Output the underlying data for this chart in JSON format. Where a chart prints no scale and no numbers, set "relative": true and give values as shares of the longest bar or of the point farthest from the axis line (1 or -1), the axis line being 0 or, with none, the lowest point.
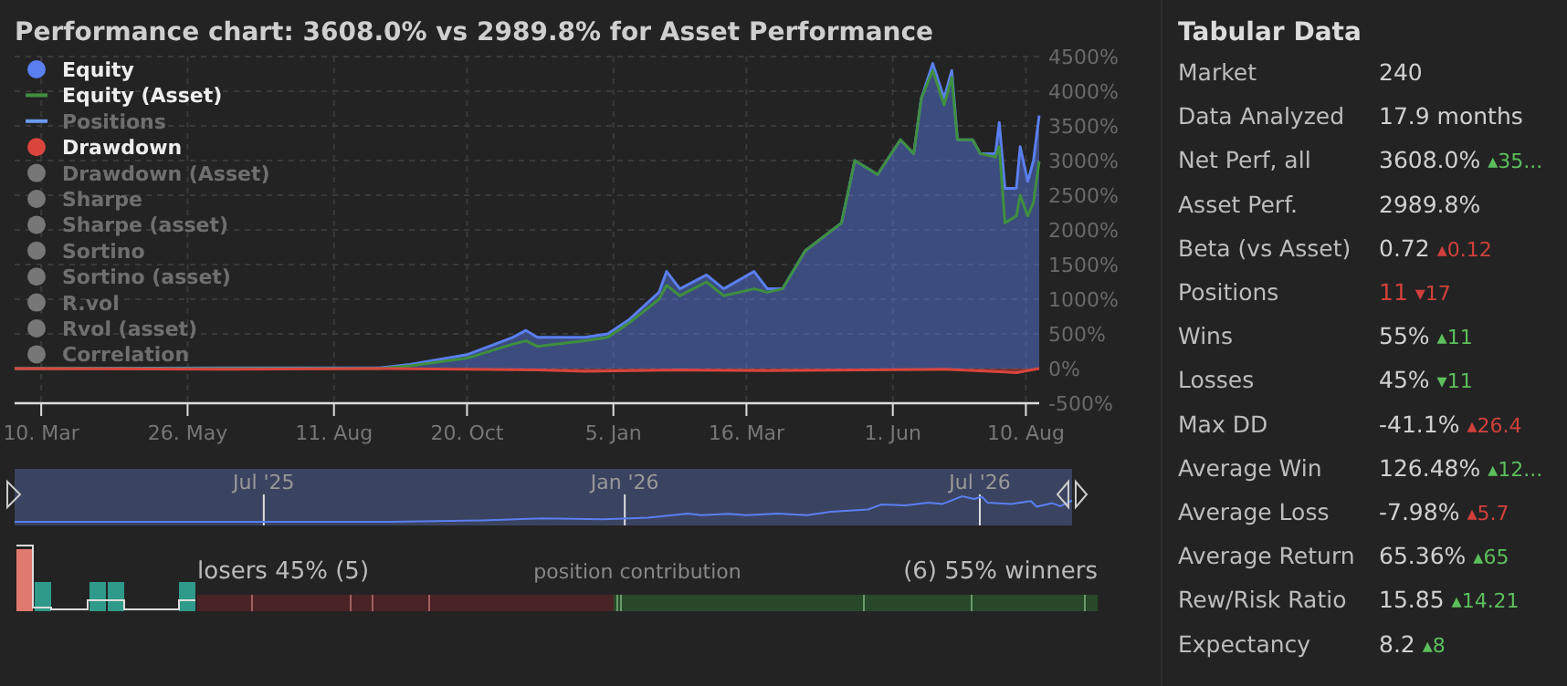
{
  "chart_data": [
    {
      "type": "area",
      "title": "Performance chart: 3608.0% vs 2989.8% for Asset Performance",
      "xlim": [
        "2025-02-24",
        "2026-08-17"
      ],
      "ylim": [
        -500,
        4500
      ],
      "xticks": [
        {
          "value": "2025-03-10",
          "label": "10. Mar"
        },
        {
          "value": "2025-05-26",
          "label": "26. May"
        },
        {
          "value": "2025-08-11",
          "label": "11. Aug"
        },
        {
          "value": "2025-10-20",
          "label": "20. Oct"
        },
        {
          "value": "2026-01-05",
          "label": "5. Jan"
        },
        {
          "value": "2026-03-16",
          "label": "16. Mar"
        },
        {
          "value": "2026-06-01",
          "label": "1. Jun"
        },
        {
          "value": "2026-08-10",
          "label": "10. Aug"
        }
      ],
      "yticks": [
        {
          "value": -500,
          "label": "-500%"
        },
        {
          "value": 0,
          "label": "0%"
        },
        {
          "value": 500,
          "label": "500%"
        },
        {
          "value": 1000,
          "label": "1000%"
        },
        {
          "value": 1500,
          "label": "1500%"
        },
        {
          "value": 2000,
          "label": "2000%"
        },
        {
          "value": 2500,
          "label": "2500%"
        },
        {
          "value": 3000,
          "label": "3000%"
        },
        {
          "value": 3500,
          "label": "3500%"
        },
        {
          "value": 4000,
          "label": "4000%"
        },
        {
          "value": 4500,
          "label": "4500%"
        }
      ],
      "grid": true,
      "legend": "top left",
      "series": [
        {
          "name": "Equity",
          "type": "area",
          "color": "#5a7ff0",
          "x": [
            "2025-02-24",
            "2025-06-12",
            "2025-09-04",
            "2025-09-20",
            "2025-10-20",
            "2025-11-13",
            "2025-11-20",
            "2025-11-26",
            "2025-12-21",
            "2026-01-02",
            "2026-01-13",
            "2026-01-29",
            "2026-02-02",
            "2026-02-09",
            "2026-02-23",
            "2026-03-04",
            "2026-03-20",
            "2026-03-27",
            "2026-04-04",
            "2026-04-16",
            "2026-05-05",
            "2026-05-12",
            "2026-05-24",
            "2026-06-05",
            "2026-06-12",
            "2026-06-16",
            "2026-06-22",
            "2026-06-28",
            "2026-07-02",
            "2026-07-05",
            "2026-07-13",
            "2026-07-17",
            "2026-07-25",
            "2026-07-27",
            "2026-07-30",
            "2026-08-05",
            "2026-08-07",
            "2026-08-11",
            "2026-08-14",
            "2026-08-17"
          ],
          "values": [
            0,
            10,
            10,
            60,
            200,
            450,
            550,
            450,
            450,
            500,
            700,
            1100,
            1400,
            1150,
            1350,
            1150,
            1400,
            1150,
            1150,
            1700,
            2100,
            3000,
            2800,
            3300,
            3100,
            3900,
            4400,
            3900,
            4300,
            3300,
            3300,
            3100,
            3100,
            3550,
            2600,
            2600,
            3200,
            2700,
            3000,
            3650
          ]
        },
        {
          "name": "Equity (Asset)",
          "type": "line",
          "color": "#3f8f3f",
          "x": [
            "2025-02-24",
            "2025-06-12",
            "2025-09-04",
            "2025-09-20",
            "2025-10-20",
            "2025-11-13",
            "2025-11-20",
            "2025-11-26",
            "2025-12-21",
            "2026-01-02",
            "2026-01-13",
            "2026-01-29",
            "2026-02-02",
            "2026-02-09",
            "2026-02-23",
            "2026-03-04",
            "2026-03-20",
            "2026-03-27",
            "2026-04-04",
            "2026-04-16",
            "2026-05-05",
            "2026-05-12",
            "2026-05-24",
            "2026-06-05",
            "2026-06-12",
            "2026-06-16",
            "2026-06-22",
            "2026-06-28",
            "2026-07-02",
            "2026-07-05",
            "2026-07-13",
            "2026-07-17",
            "2026-07-25",
            "2026-07-27",
            "2026-07-30",
            "2026-08-05",
            "2026-08-07",
            "2026-08-11",
            "2026-08-14",
            "2026-08-17"
          ],
          "values": [
            0,
            0,
            0,
            40,
            150,
            350,
            400,
            320,
            400,
            450,
            650,
            1000,
            1200,
            1050,
            1250,
            1050,
            1150,
            1100,
            1150,
            1700,
            2100,
            3000,
            2800,
            3300,
            3100,
            3900,
            4300,
            3800,
            4200,
            3300,
            3300,
            3100,
            3050,
            3200,
            2100,
            2200,
            2500,
            2200,
            2400,
            2990
          ]
        },
        {
          "name": "Positions",
          "type": "line",
          "color": "#6a9cf0"
        },
        {
          "name": "Drawdown",
          "type": "area",
          "color": "#d9453d",
          "x": [
            "2025-02-24",
            "2025-06-12",
            "2025-09-04",
            "2025-11-26",
            "2025-12-21",
            "2026-02-09",
            "2026-03-27",
            "2026-06-28",
            "2026-07-30",
            "2026-08-05",
            "2026-08-17"
          ],
          "values": [
            0,
            -10,
            0,
            -20,
            -40,
            -20,
            -30,
            -10,
            -50,
            -60,
            0
          ]
        },
        {
          "name": "Drawdown (Asset)",
          "type": "scatter",
          "color": "#777777"
        },
        {
          "name": "Sharpe",
          "type": "scatter",
          "color": "#777777"
        },
        {
          "name": "Sharpe (asset)",
          "type": "scatter",
          "color": "#777777"
        },
        {
          "name": "Sortino",
          "type": "scatter",
          "color": "#777777"
        },
        {
          "name": "Sortino (asset)",
          "type": "scatter",
          "color": "#777777"
        },
        {
          "name": "R.vol",
          "type": "scatter",
          "color": "#777777"
        },
        {
          "name": "Rvol (asset)",
          "type": "scatter",
          "color": "#777777"
        },
        {
          "name": "Correlation",
          "type": "scatter",
          "color": "#777777"
        }
      ],
      "annotations": [
        "losers 45% (5)",
        "position contribution",
        "(6) 55% winners"
      ]
    },
    {
      "type": "line",
      "relative": true,
      "tick_labels": "x",
      "grid": "x",
      "xlim": [
        "2025-02-24",
        "2026-08-17"
      ],
      "xticks": [
        {
          "value": "2025-07-01",
          "label": "Jul '25"
        },
        {
          "value": "2026-01-01",
          "label": "Jan '26"
        },
        {
          "value": "2026-07-01",
          "label": "Jul '26"
        }
      ],
      "series": [
        {
          "color": "#5a7ff0",
          "x": [
            "2025-02-24",
            "2025-06-12",
            "2025-09-04",
            "2025-10-20",
            "2025-11-20",
            "2025-12-21",
            "2026-01-13",
            "2026-02-02",
            "2026-02-09",
            "2026-02-23",
            "2026-03-04",
            "2026-03-20",
            "2026-04-04",
            "2026-04-16",
            "2026-05-05",
            "2026-05-12",
            "2026-05-24",
            "2026-06-05",
            "2026-06-12",
            "2026-06-22",
            "2026-06-28",
            "2026-07-02",
            "2026-07-05",
            "2026-07-17",
            "2026-07-27",
            "2026-07-30",
            "2026-08-07",
            "2026-08-11",
            "2026-08-17"
          ],
          "values": [
            0,
            0,
            0,
            0.05,
            0.13,
            0.1,
            0.16,
            0.32,
            0.26,
            0.31,
            0.26,
            0.32,
            0.26,
            0.39,
            0.48,
            0.68,
            0.64,
            0.75,
            0.7,
            1,
            0.89,
            0.98,
            0.75,
            0.7,
            0.81,
            0.59,
            0.73,
            0.61,
            0.83
          ]
        }
      ]
    },
    {
      "type": "other",
      "title": "Tabular Data",
      "categories": [
        "Market",
        "Data Analyzed",
        "Net Perf, all",
        "Asset Perf.",
        "Beta (vs Asset)",
        "Positions",
        "Wins",
        "Losses",
        "Max DD",
        "Average Win",
        "Average Loss",
        "Average Return",
        "Rew/Risk Ratio",
        "Expectancy"
      ],
      "value_labels": [
        "240",
        "17.9 months",
        "3608.0%",
        "2989.8%",
        "0.72",
        "11",
        "55%",
        "45%",
        "-41.1%",
        "126.48%",
        "-7.98%",
        "65.36%",
        "15.85",
        "8.2"
      ],
      "annotations": [
        null,
        null,
        "▴35...",
        null,
        "▴0.12",
        "▾17",
        "▴11",
        "▾11",
        "▴26.4",
        "▴12...",
        "▴5.7",
        "▴65",
        "▴14.21",
        "▴8"
      ],
      "colors": [
        null,
        null,
        "#5cbf5c",
        null,
        "#d0413b",
        "#d0413b",
        "#5cbf5c",
        "#5cbf5c",
        "#d0413b",
        "#5cbf5c",
        "#d0413b",
        "#5cbf5c",
        "#5cbf5c",
        "#5cbf5c"
      ]
    }
  ]
}
